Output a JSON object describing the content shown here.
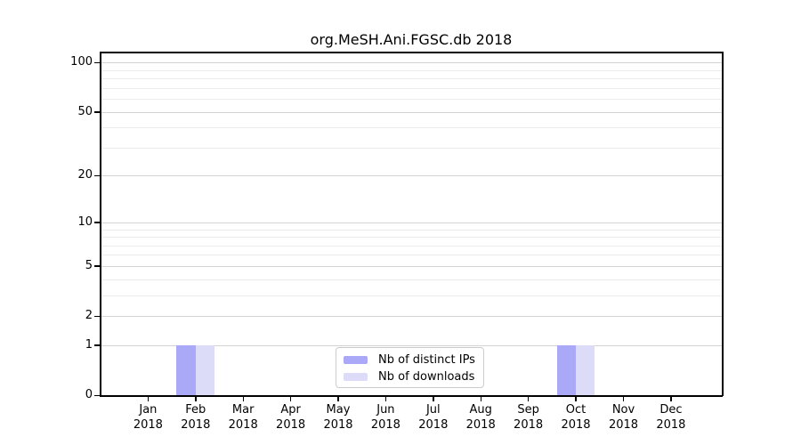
{
  "title": "org.MeSH.Ani.FGSC.db 2018",
  "chart_data": {
    "type": "bar",
    "title": "org.MeSH.Ani.FGSC.db 2018",
    "categories": [
      "Jan",
      "Feb",
      "Mar",
      "Apr",
      "May",
      "Jun",
      "Jul",
      "Aug",
      "Sep",
      "Oct",
      "Nov",
      "Dec"
    ],
    "x_year_label": "2018",
    "series": [
      {
        "name": "Nb of distinct IPs",
        "color": "#a9a9f7",
        "values": [
          0,
          1,
          0,
          0,
          0,
          0,
          0,
          0,
          0,
          1,
          0,
          0
        ]
      },
      {
        "name": "Nb of downloads",
        "color": "#dcdcf8",
        "values": [
          0,
          1,
          0,
          0,
          0,
          0,
          0,
          0,
          0,
          1,
          0,
          0
        ]
      }
    ],
    "xlabel": "",
    "ylabel": "",
    "yscale": "log1p",
    "ylim": [
      0,
      115
    ],
    "y_tick_values": [
      100,
      50,
      20,
      10,
      5,
      2,
      1,
      0
    ],
    "y_tick_labels": [
      "100",
      "50",
      "20",
      "10",
      "5",
      "2",
      "1",
      "0"
    ],
    "y_grid_major": [
      1,
      2,
      5,
      10,
      20,
      50,
      100
    ],
    "y_grid_minor": [
      3,
      4,
      6,
      7,
      8,
      9,
      30,
      40,
      60,
      70,
      80,
      90
    ],
    "grid": true,
    "legend_position": "lower center",
    "legend_entries": [
      "Nb of distinct IPs",
      "Nb of downloads"
    ]
  },
  "colors": {
    "bar_distinct_ips": "#a9a9f7",
    "bar_downloads": "#dcdcf8",
    "grid_major": "#d4d4d4",
    "grid_minor": "#ececec",
    "spine": "#000000",
    "legend_border": "#cccccc",
    "background": "#ffffff",
    "text": "#000000"
  }
}
